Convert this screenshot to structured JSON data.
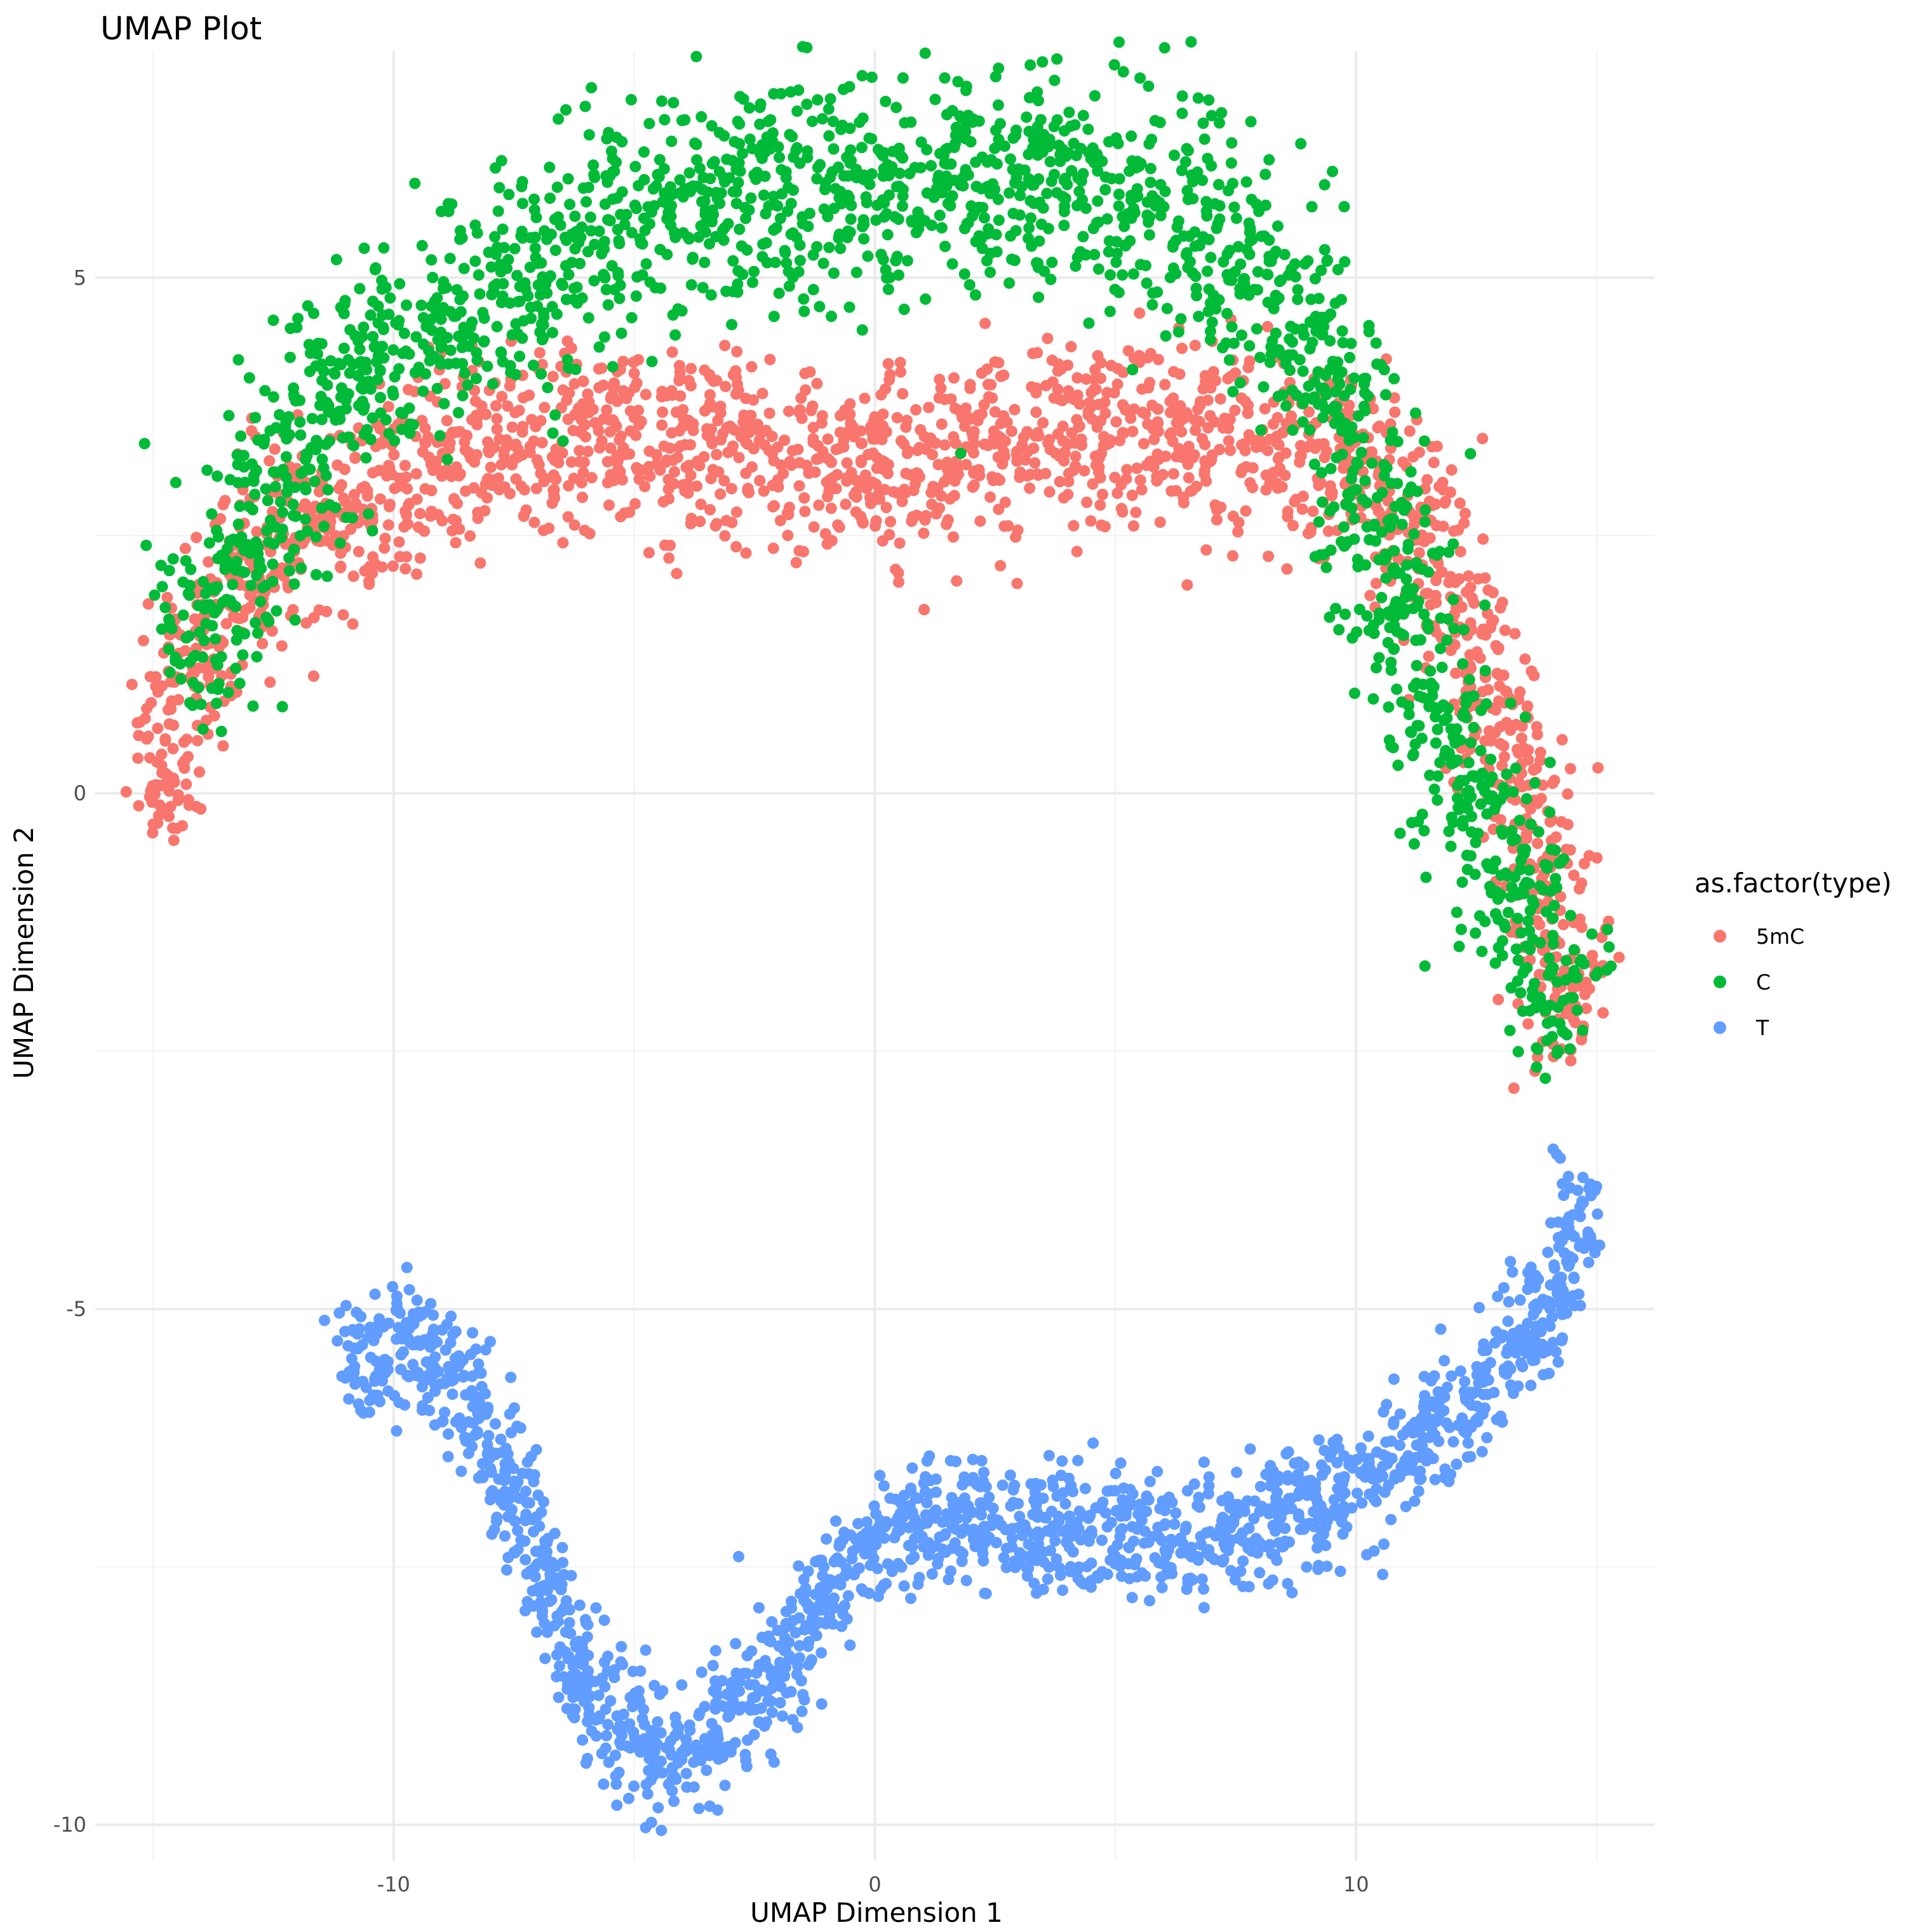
{
  "chart_data": {
    "type": "scatter",
    "title": "UMAP Plot",
    "xlabel": "UMAP Dimension 1",
    "ylabel": "UMAP Dimension 2",
    "xlim": [
      -16.2,
      16.2
    ],
    "ylim": [
      -10.35,
      7.2
    ],
    "x_ticks": [
      -10,
      0,
      10
    ],
    "x_tick_labels": [
      "-10",
      "0",
      "10"
    ],
    "y_ticks": [
      -10,
      -5,
      0,
      5
    ],
    "y_tick_labels": [
      "-10",
      "-5",
      "0",
      "5"
    ],
    "grid": true,
    "legend": {
      "title": "as.factor(type)",
      "position": "right",
      "entries": [
        "5mC",
        "C",
        "T"
      ]
    },
    "series": [
      {
        "name": "5mC",
        "color": "#F8766D",
        "trace": [
          [
            -15,
            -0.35
          ],
          [
            -14.6,
            0.6
          ],
          [
            -14,
            1.6
          ],
          [
            -13,
            2.4
          ],
          [
            -11.5,
            2.7
          ],
          [
            -10,
            2.9
          ],
          [
            -8,
            3.3
          ],
          [
            -6,
            3.5
          ],
          [
            -4,
            3.4
          ],
          [
            -2,
            3.3
          ],
          [
            0,
            3.1
          ],
          [
            2,
            3.3
          ],
          [
            4,
            3.5
          ],
          [
            6,
            3.6
          ],
          [
            8,
            3.4
          ],
          [
            10,
            3.3
          ],
          [
            11,
            2.8
          ],
          [
            11.8,
            2.0
          ],
          [
            12.6,
            1.2
          ],
          [
            13.2,
            0.4
          ],
          [
            13.8,
            -0.6
          ],
          [
            14.3,
            -1.6
          ],
          [
            14.6,
            -2.5
          ]
        ],
        "spread": 0.45
      },
      {
        "name": "C",
        "color": "#00BA38",
        "trace": [
          [
            -14.5,
            1.2
          ],
          [
            -13.5,
            2.1
          ],
          [
            -12,
            3.2
          ],
          [
            -11,
            4.1
          ],
          [
            -9,
            4.5
          ],
          [
            -7,
            5.0
          ],
          [
            -5,
            5.5
          ],
          [
            -3,
            5.8
          ],
          [
            -1,
            5.9
          ],
          [
            1,
            5.9
          ],
          [
            3,
            6.0
          ],
          [
            5,
            5.9
          ],
          [
            7,
            5.4
          ],
          [
            8.5,
            4.9
          ],
          [
            9.5,
            4.2
          ],
          [
            10,
            3.4
          ],
          [
            10.3,
            2.5
          ],
          [
            10.8,
            1.9
          ],
          [
            11.4,
            1.2
          ],
          [
            12,
            0.5
          ],
          [
            12.6,
            -0.2
          ],
          [
            13.3,
            -0.9
          ],
          [
            14,
            -1.6
          ],
          [
            14.5,
            -2.4
          ]
        ],
        "spread": 0.55
      },
      {
        "name": "T",
        "color": "#619CFF",
        "trace": [
          [
            -11,
            -5.7
          ],
          [
            -10.2,
            -5.25
          ],
          [
            -9.2,
            -5.4
          ],
          [
            -8.2,
            -6.0
          ],
          [
            -7.3,
            -7.0
          ],
          [
            -6.6,
            -8.0
          ],
          [
            -5.8,
            -8.8
          ],
          [
            -4.8,
            -9.3
          ],
          [
            -4,
            -9.35
          ],
          [
            -3,
            -9.0
          ],
          [
            -2,
            -8.4
          ],
          [
            -1,
            -7.8
          ],
          [
            0,
            -7.3
          ],
          [
            1.5,
            -7.0
          ],
          [
            3,
            -7.1
          ],
          [
            5,
            -7.2
          ],
          [
            7,
            -7.25
          ],
          [
            9,
            -7.0
          ],
          [
            11,
            -6.4
          ],
          [
            12.8,
            -5.7
          ],
          [
            13.9,
            -5.1
          ],
          [
            14.5,
            -4.4
          ],
          [
            14.8,
            -3.8
          ]
        ],
        "spread": 0.3
      }
    ]
  }
}
